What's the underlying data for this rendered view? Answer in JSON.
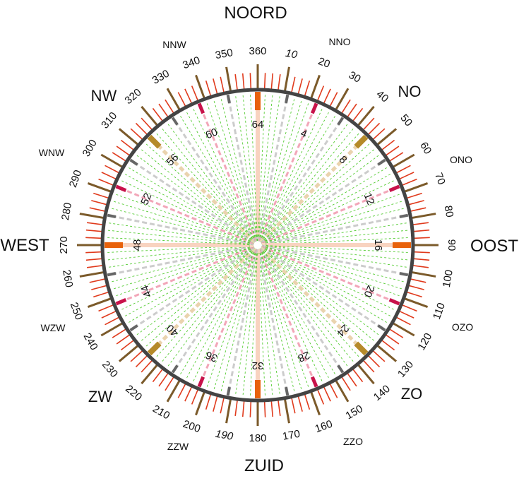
{
  "compass": {
    "cardinals": [
      "NOORD",
      "OOST",
      "ZUID",
      "WEST"
    ],
    "intercardinals": [
      "NO",
      "ZO",
      "ZW",
      "NW"
    ],
    "secondary": [
      "NNO",
      "ONO",
      "OZO",
      "ZZO",
      "ZZW",
      "WZW",
      "WNW",
      "NNW"
    ],
    "degree_labels": [
      "360",
      "10",
      "20",
      "30",
      "40",
      "50",
      "60",
      "70",
      "80",
      "90",
      "100",
      "110",
      "120",
      "130",
      "140",
      "150",
      "160",
      "170",
      "180",
      "190",
      "200",
      "210",
      "220",
      "230",
      "240",
      "250",
      "260",
      "270",
      "280",
      "290",
      "300",
      "310",
      "320",
      "330",
      "340",
      "350"
    ],
    "inner_labels": [
      "64",
      "4",
      "8",
      "12",
      "16",
      "20",
      "24",
      "28",
      "32",
      "36",
      "40",
      "44",
      "48",
      "52",
      "56",
      "60"
    ]
  },
  "colors": {
    "tick_red": "#e03a1c",
    "tick_brown": "#7b5a2a",
    "rim": "#444444",
    "cardinal_mark": "#e8620c",
    "intercardinal_mark": "#b58a2a",
    "eighth_mark": "#c8124a",
    "sixteenth_mark": "#666666",
    "ray_green": "#55cc33",
    "ray_grey": "#cccccc",
    "ray_pink": "#f2a6b8",
    "ray_tan": "#ead3ae",
    "ray_peach": "#f8d3c0"
  }
}
